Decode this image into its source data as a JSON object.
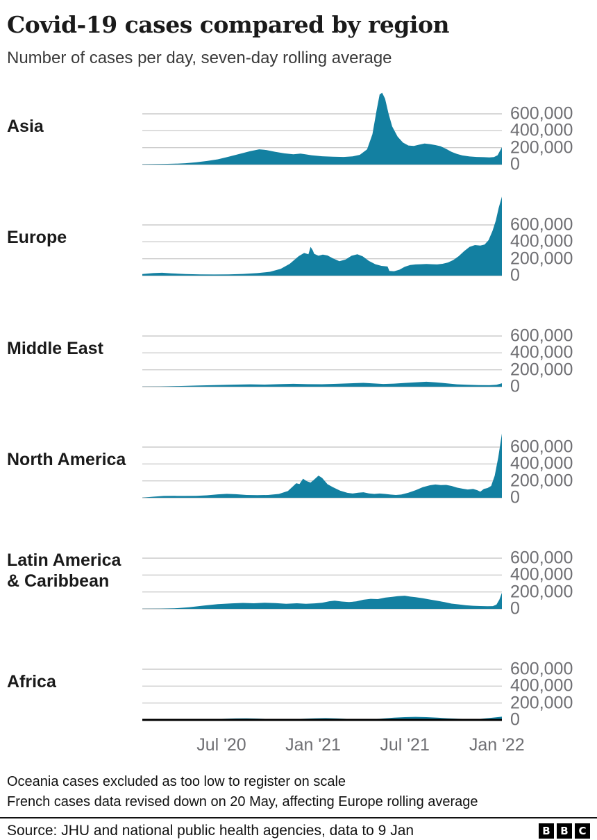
{
  "header": {
    "title": "Covid-19 cases compared by region",
    "subtitle": "Number of cases per day, seven-day rolling average"
  },
  "footnotes": {
    "line1": "Oceania cases excluded as too low to register on scale",
    "line2": "French cases data revised down on 20 May, affecting Europe rolling average"
  },
  "source": {
    "label": "Source: JHU and national public health agencies, data to 9 Jan",
    "logo_letters": [
      "B",
      "B",
      "C"
    ]
  },
  "colors": {
    "area": "#1380A1",
    "grid": "#cccccc",
    "zero_line": "#c4c4c4",
    "bottom_axis": "#000000",
    "tick_text": "#6f6f73",
    "title_text": "#1a1a1a",
    "body_text": "#111111"
  },
  "chart_data": {
    "type": "area",
    "layout_hint": "small multiples, one row per region, shared x axis, gridlines on, y labels on right",
    "unit": "cases per day, seven-day rolling average",
    "x_domain": [
      "Feb 2020",
      "9 Jan 2022"
    ],
    "x_ticks": [
      {
        "label": "Jul '20",
        "t": 0.22
      },
      {
        "label": "Jan '21",
        "t": 0.475
      },
      {
        "label": "Jul '21",
        "t": 0.73
      },
      {
        "label": "Jan '22",
        "t": 0.986
      }
    ],
    "y_ticks": [
      {
        "label": "600,000",
        "value": 600000
      },
      {
        "label": "400,000",
        "value": 400000
      },
      {
        "label": "200,000",
        "value": 200000
      },
      {
        "label": "0",
        "value": 0
      }
    ],
    "y_plot_max": 950000,
    "series": [
      {
        "name": "Asia",
        "name_lines": [
          "Asia"
        ],
        "points": [
          [
            0,
            3000
          ],
          [
            0.03,
            5000
          ],
          [
            0.06,
            7000
          ],
          [
            0.09,
            10000
          ],
          [
            0.12,
            16000
          ],
          [
            0.15,
            26000
          ],
          [
            0.18,
            42000
          ],
          [
            0.21,
            62000
          ],
          [
            0.24,
            92000
          ],
          [
            0.27,
            125000
          ],
          [
            0.3,
            158000
          ],
          [
            0.325,
            180000
          ],
          [
            0.345,
            172000
          ],
          [
            0.37,
            150000
          ],
          [
            0.395,
            132000
          ],
          [
            0.42,
            122000
          ],
          [
            0.44,
            130000
          ],
          [
            0.455,
            120000
          ],
          [
            0.47,
            110000
          ],
          [
            0.5,
            98000
          ],
          [
            0.53,
            92000
          ],
          [
            0.56,
            90000
          ],
          [
            0.585,
            96000
          ],
          [
            0.605,
            115000
          ],
          [
            0.625,
            180000
          ],
          [
            0.64,
            360000
          ],
          [
            0.652,
            650000
          ],
          [
            0.66,
            830000
          ],
          [
            0.667,
            850000
          ],
          [
            0.675,
            780000
          ],
          [
            0.685,
            600000
          ],
          [
            0.695,
            450000
          ],
          [
            0.71,
            330000
          ],
          [
            0.725,
            260000
          ],
          [
            0.74,
            225000
          ],
          [
            0.755,
            220000
          ],
          [
            0.77,
            235000
          ],
          [
            0.785,
            248000
          ],
          [
            0.8,
            242000
          ],
          [
            0.815,
            230000
          ],
          [
            0.83,
            215000
          ],
          [
            0.845,
            185000
          ],
          [
            0.86,
            150000
          ],
          [
            0.875,
            125000
          ],
          [
            0.89,
            108000
          ],
          [
            0.91,
            95000
          ],
          [
            0.93,
            90000
          ],
          [
            0.95,
            87000
          ],
          [
            0.965,
            85000
          ],
          [
            0.978,
            88000
          ],
          [
            0.988,
            110000
          ],
          [
            1,
            205000
          ]
        ]
      },
      {
        "name": "Europe",
        "name_lines": [
          "Europe"
        ],
        "points": [
          [
            0,
            18000
          ],
          [
            0.03,
            30000
          ],
          [
            0.055,
            34000
          ],
          [
            0.08,
            27000
          ],
          [
            0.12,
            18000
          ],
          [
            0.16,
            14000
          ],
          [
            0.2,
            13000
          ],
          [
            0.24,
            15000
          ],
          [
            0.28,
            20000
          ],
          [
            0.32,
            30000
          ],
          [
            0.355,
            45000
          ],
          [
            0.385,
            80000
          ],
          [
            0.41,
            140000
          ],
          [
            0.435,
            230000
          ],
          [
            0.45,
            268000
          ],
          [
            0.462,
            252000
          ],
          [
            0.468,
            340000
          ],
          [
            0.474,
            300000
          ],
          [
            0.478,
            258000
          ],
          [
            0.49,
            235000
          ],
          [
            0.502,
            248000
          ],
          [
            0.515,
            238000
          ],
          [
            0.53,
            205000
          ],
          [
            0.548,
            170000
          ],
          [
            0.565,
            190000
          ],
          [
            0.582,
            235000
          ],
          [
            0.598,
            252000
          ],
          [
            0.613,
            228000
          ],
          [
            0.63,
            175000
          ],
          [
            0.648,
            135000
          ],
          [
            0.665,
            115000
          ],
          [
            0.682,
            108000
          ],
          [
            0.687,
            55000
          ],
          [
            0.7,
            52000
          ],
          [
            0.715,
            70000
          ],
          [
            0.73,
            105000
          ],
          [
            0.745,
            125000
          ],
          [
            0.76,
            132000
          ],
          [
            0.775,
            135000
          ],
          [
            0.79,
            138000
          ],
          [
            0.805,
            135000
          ],
          [
            0.82,
            132000
          ],
          [
            0.835,
            140000
          ],
          [
            0.85,
            155000
          ],
          [
            0.865,
            185000
          ],
          [
            0.88,
            230000
          ],
          [
            0.895,
            290000
          ],
          [
            0.91,
            340000
          ],
          [
            0.925,
            362000
          ],
          [
            0.94,
            355000
          ],
          [
            0.952,
            368000
          ],
          [
            0.963,
            420000
          ],
          [
            0.974,
            530000
          ],
          [
            0.983,
            650000
          ],
          [
            0.991,
            800000
          ],
          [
            1,
            935000
          ]
        ]
      },
      {
        "name": "Middle East",
        "name_lines": [
          "Middle East"
        ],
        "points": [
          [
            0,
            500
          ],
          [
            0.05,
            2500
          ],
          [
            0.1,
            7000
          ],
          [
            0.15,
            13000
          ],
          [
            0.2,
            19000
          ],
          [
            0.25,
            24000
          ],
          [
            0.3,
            28000
          ],
          [
            0.34,
            25000
          ],
          [
            0.38,
            30000
          ],
          [
            0.42,
            34000
          ],
          [
            0.46,
            30000
          ],
          [
            0.5,
            29000
          ],
          [
            0.54,
            34000
          ],
          [
            0.58,
            40000
          ],
          [
            0.615,
            45000
          ],
          [
            0.645,
            38000
          ],
          [
            0.67,
            32000
          ],
          [
            0.7,
            36000
          ],
          [
            0.73,
            44000
          ],
          [
            0.76,
            52000
          ],
          [
            0.79,
            58000
          ],
          [
            0.815,
            52000
          ],
          [
            0.845,
            40000
          ],
          [
            0.875,
            28000
          ],
          [
            0.905,
            22000
          ],
          [
            0.935,
            18000
          ],
          [
            0.965,
            17000
          ],
          [
            0.985,
            22000
          ],
          [
            1,
            40000
          ]
        ]
      },
      {
        "name": "North America",
        "name_lines": [
          "North America"
        ],
        "points": [
          [
            0,
            1000
          ],
          [
            0.03,
            12000
          ],
          [
            0.06,
            21000
          ],
          [
            0.09,
            22000
          ],
          [
            0.12,
            21000
          ],
          [
            0.15,
            23000
          ],
          [
            0.18,
            29000
          ],
          [
            0.21,
            40000
          ],
          [
            0.235,
            46000
          ],
          [
            0.26,
            42000
          ],
          [
            0.29,
            33000
          ],
          [
            0.32,
            31000
          ],
          [
            0.35,
            33000
          ],
          [
            0.38,
            45000
          ],
          [
            0.405,
            80000
          ],
          [
            0.42,
            140000
          ],
          [
            0.428,
            172000
          ],
          [
            0.437,
            162000
          ],
          [
            0.447,
            225000
          ],
          [
            0.458,
            195000
          ],
          [
            0.468,
            180000
          ],
          [
            0.478,
            215000
          ],
          [
            0.49,
            262000
          ],
          [
            0.5,
            235000
          ],
          [
            0.515,
            160000
          ],
          [
            0.53,
            125000
          ],
          [
            0.55,
            85000
          ],
          [
            0.57,
            58000
          ],
          [
            0.585,
            50000
          ],
          [
            0.6,
            60000
          ],
          [
            0.615,
            65000
          ],
          [
            0.63,
            52000
          ],
          [
            0.645,
            45000
          ],
          [
            0.66,
            50000
          ],
          [
            0.675,
            45000
          ],
          [
            0.69,
            38000
          ],
          [
            0.705,
            33000
          ],
          [
            0.72,
            38000
          ],
          [
            0.74,
            60000
          ],
          [
            0.76,
            90000
          ],
          [
            0.78,
            125000
          ],
          [
            0.8,
            148000
          ],
          [
            0.815,
            157000
          ],
          [
            0.83,
            150000
          ],
          [
            0.845,
            152000
          ],
          [
            0.86,
            140000
          ],
          [
            0.875,
            120000
          ],
          [
            0.89,
            108000
          ],
          [
            0.905,
            98000
          ],
          [
            0.92,
            105000
          ],
          [
            0.932,
            88000
          ],
          [
            0.94,
            72000
          ],
          [
            0.95,
            105000
          ],
          [
            0.96,
            115000
          ],
          [
            0.97,
            140000
          ],
          [
            0.98,
            260000
          ],
          [
            0.99,
            480000
          ],
          [
            1,
            760000
          ]
        ]
      },
      {
        "name": "Latin America & Caribbean",
        "name_lines": [
          "Latin America",
          "& Caribbean"
        ],
        "points": [
          [
            0,
            500
          ],
          [
            0.05,
            2000
          ],
          [
            0.09,
            6000
          ],
          [
            0.13,
            18000
          ],
          [
            0.17,
            38000
          ],
          [
            0.21,
            55000
          ],
          [
            0.25,
            65000
          ],
          [
            0.28,
            70000
          ],
          [
            0.31,
            66000
          ],
          [
            0.34,
            72000
          ],
          [
            0.37,
            67000
          ],
          [
            0.4,
            60000
          ],
          [
            0.43,
            66000
          ],
          [
            0.455,
            60000
          ],
          [
            0.48,
            65000
          ],
          [
            0.5,
            72000
          ],
          [
            0.52,
            90000
          ],
          [
            0.535,
            97000
          ],
          [
            0.555,
            86000
          ],
          [
            0.575,
            80000
          ],
          [
            0.595,
            88000
          ],
          [
            0.615,
            108000
          ],
          [
            0.635,
            118000
          ],
          [
            0.655,
            115000
          ],
          [
            0.675,
            132000
          ],
          [
            0.695,
            142000
          ],
          [
            0.71,
            150000
          ],
          [
            0.73,
            155000
          ],
          [
            0.745,
            145000
          ],
          [
            0.76,
            138000
          ],
          [
            0.78,
            125000
          ],
          [
            0.8,
            110000
          ],
          [
            0.82,
            95000
          ],
          [
            0.84,
            80000
          ],
          [
            0.86,
            62000
          ],
          [
            0.88,
            53000
          ],
          [
            0.9,
            42000
          ],
          [
            0.92,
            36000
          ],
          [
            0.94,
            33000
          ],
          [
            0.96,
            31000
          ],
          [
            0.975,
            32000
          ],
          [
            0.985,
            50000
          ],
          [
            0.993,
            110000
          ],
          [
            1,
            190000
          ]
        ]
      },
      {
        "name": "Africa",
        "name_lines": [
          "Africa"
        ],
        "bottom_axis": true,
        "points": [
          [
            0,
            300
          ],
          [
            0.06,
            1200
          ],
          [
            0.12,
            3500
          ],
          [
            0.17,
            7000
          ],
          [
            0.22,
            12000
          ],
          [
            0.26,
            17000
          ],
          [
            0.29,
            19000
          ],
          [
            0.32,
            16000
          ],
          [
            0.36,
            10000
          ],
          [
            0.4,
            7000
          ],
          [
            0.44,
            12000
          ],
          [
            0.48,
            18000
          ],
          [
            0.51,
            21000
          ],
          [
            0.54,
            17000
          ],
          [
            0.58,
            10000
          ],
          [
            0.62,
            8000
          ],
          [
            0.66,
            13000
          ],
          [
            0.7,
            26000
          ],
          [
            0.73,
            33000
          ],
          [
            0.76,
            36000
          ],
          [
            0.79,
            33000
          ],
          [
            0.82,
            26000
          ],
          [
            0.85,
            19000
          ],
          [
            0.88,
            13000
          ],
          [
            0.91,
            10000
          ],
          [
            0.94,
            12000
          ],
          [
            0.97,
            25000
          ],
          [
            1,
            38000
          ]
        ]
      }
    ]
  }
}
